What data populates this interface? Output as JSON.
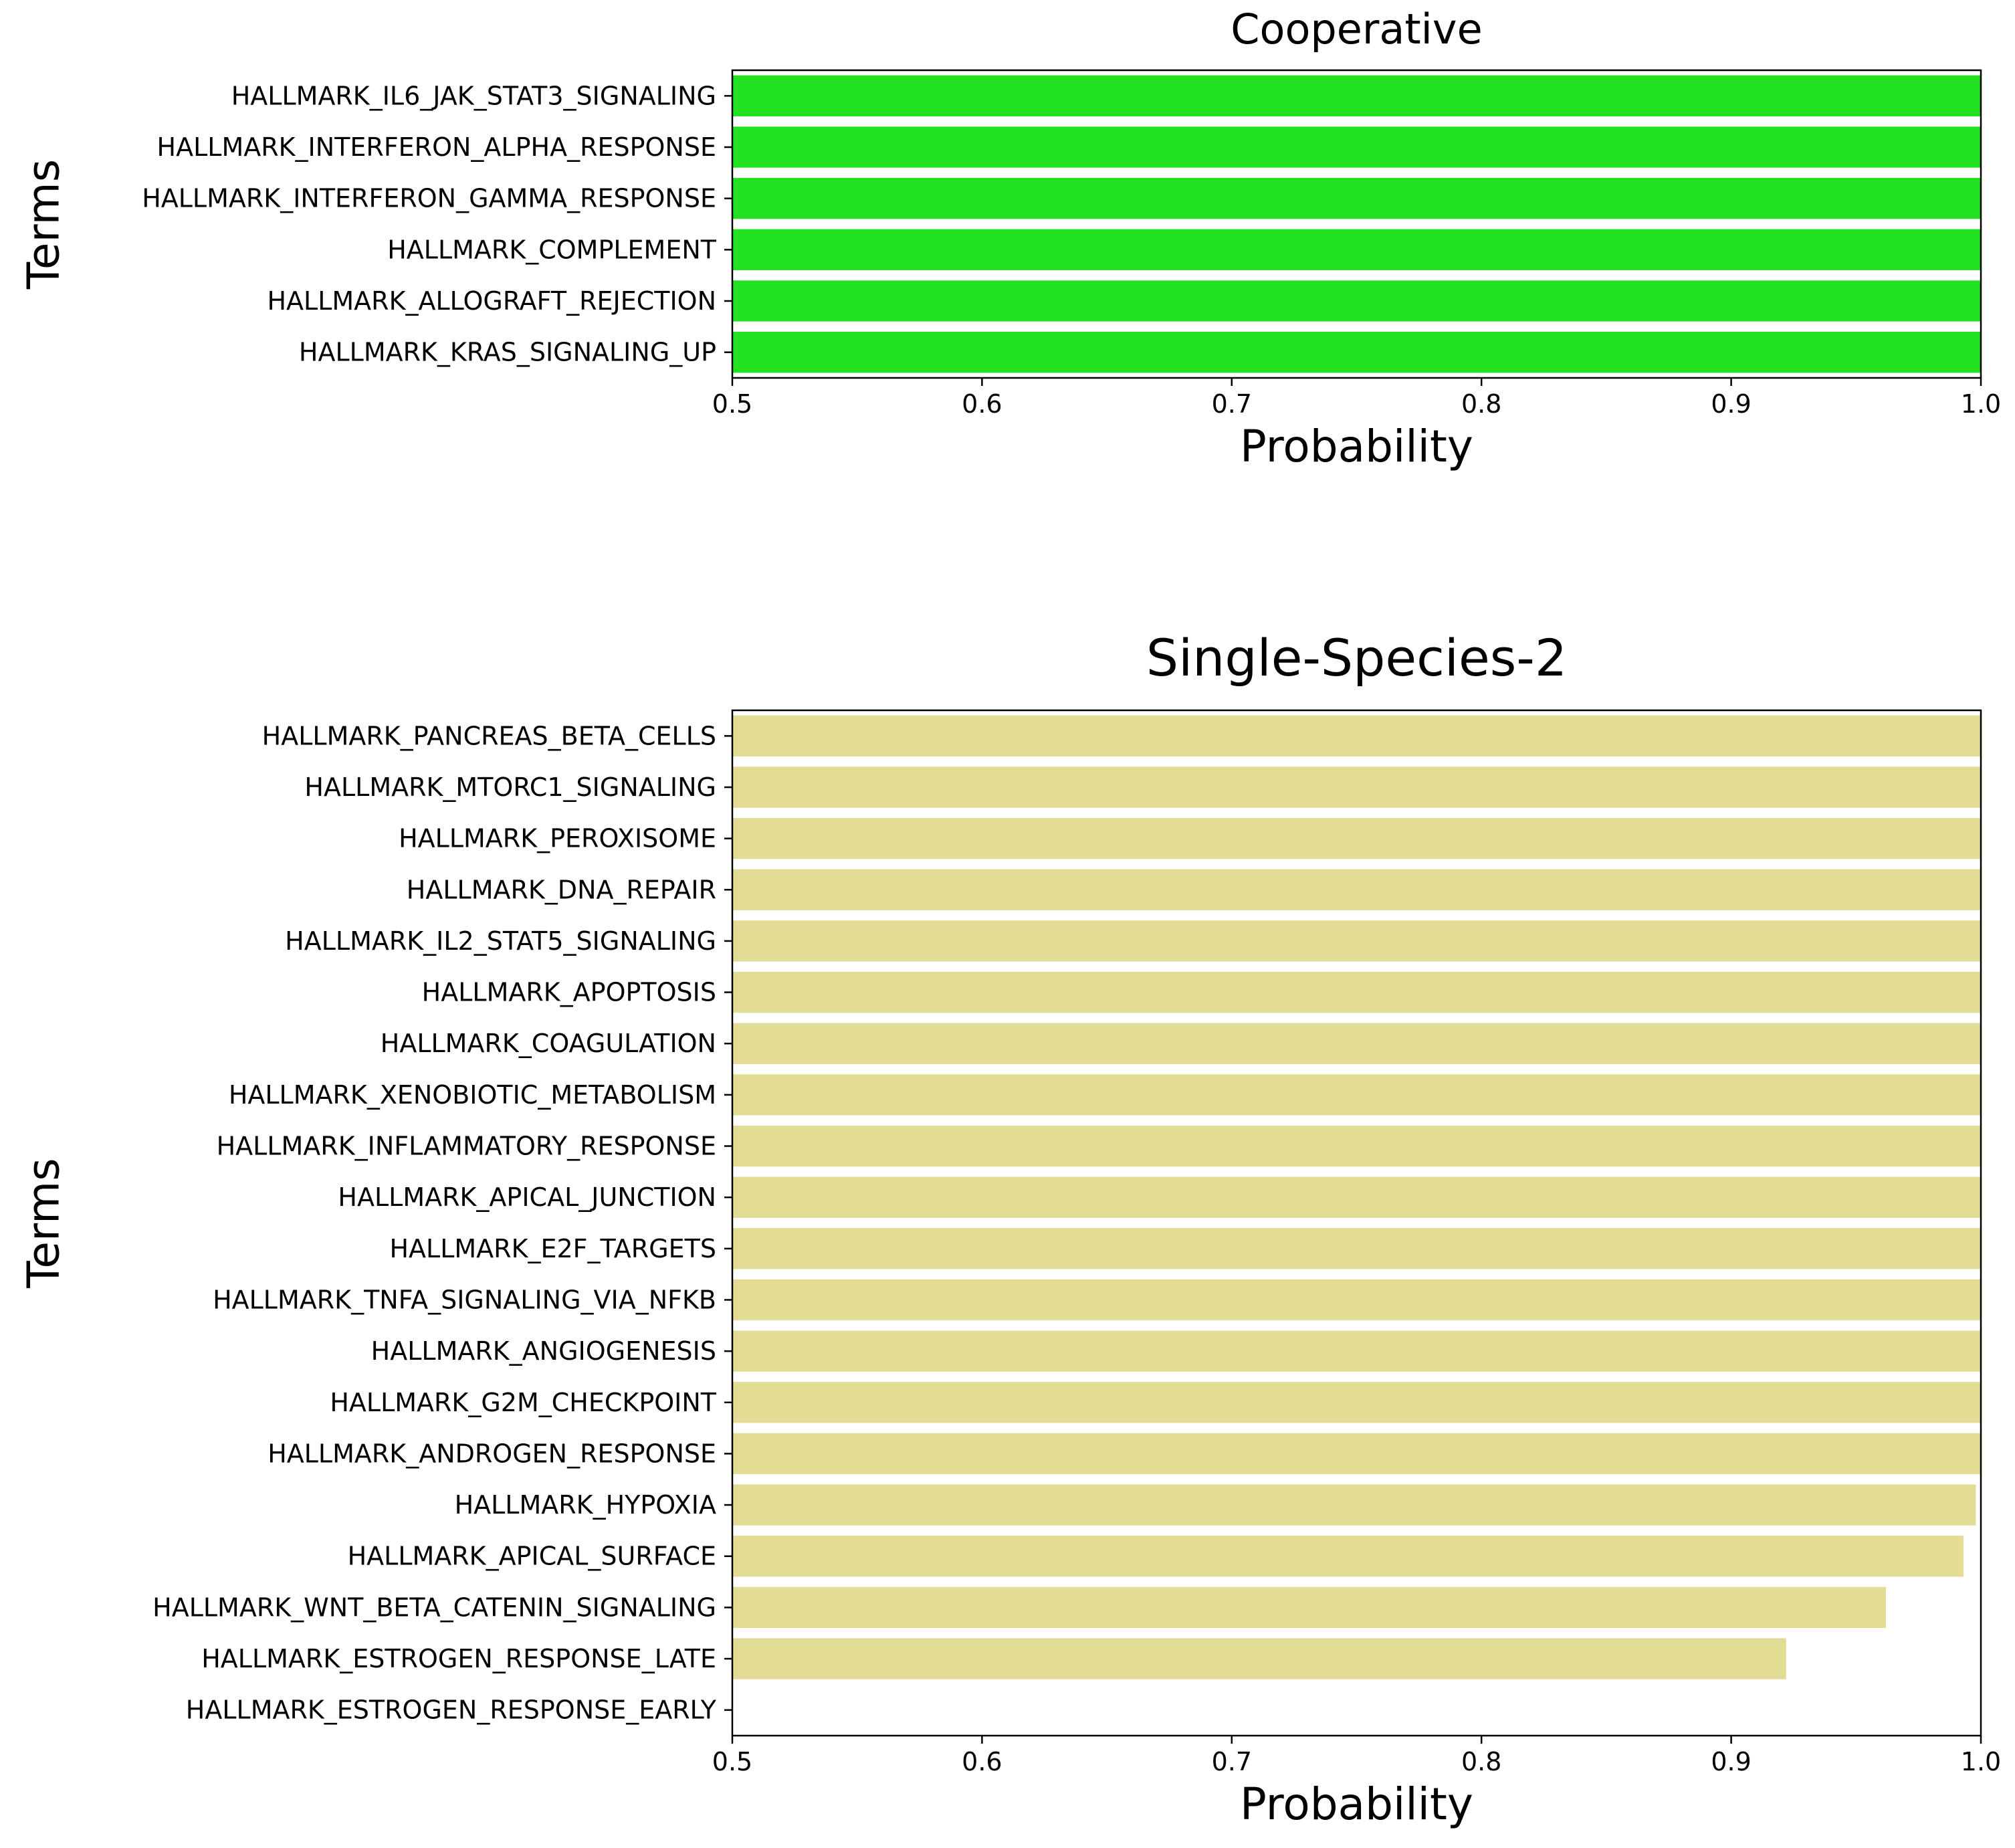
{
  "chart_data": [
    {
      "type": "bar",
      "orientation": "horizontal",
      "title": "Cooperative",
      "xlabel": "Probability",
      "ylabel": "Terms",
      "xlim": [
        0.5,
        1.0
      ],
      "xticks": [
        "0.5",
        "0.6",
        "0.7",
        "0.8",
        "0.9",
        "1.0"
      ],
      "grid": false,
      "bar_color": "#22e222",
      "categories": [
        "HALLMARK_IL6_JAK_STAT3_SIGNALING",
        "HALLMARK_INTERFERON_ALPHA_RESPONSE",
        "HALLMARK_INTERFERON_GAMMA_RESPONSE",
        "HALLMARK_COMPLEMENT",
        "HALLMARK_ALLOGRAFT_REJECTION",
        "HALLMARK_KRAS_SIGNALING_UP"
      ],
      "values": [
        1.0,
        1.0,
        1.0,
        1.0,
        1.0,
        1.0
      ]
    },
    {
      "type": "bar",
      "orientation": "horizontal",
      "title": "Single-Species-2",
      "xlabel": "Probability",
      "ylabel": "Terms",
      "xlim": [
        0.5,
        1.0
      ],
      "xticks": [
        "0.5",
        "0.6",
        "0.7",
        "0.8",
        "0.9",
        "1.0"
      ],
      "grid": false,
      "bar_color": "#e3dc94",
      "categories": [
        "HALLMARK_PANCREAS_BETA_CELLS",
        "HALLMARK_MTORC1_SIGNALING",
        "HALLMARK_PEROXISOME",
        "HALLMARK_DNA_REPAIR",
        "HALLMARK_IL2_STAT5_SIGNALING",
        "HALLMARK_APOPTOSIS",
        "HALLMARK_COAGULATION",
        "HALLMARK_XENOBIOTIC_METABOLISM",
        "HALLMARK_INFLAMMATORY_RESPONSE",
        "HALLMARK_APICAL_JUNCTION",
        "HALLMARK_E2F_TARGETS",
        "HALLMARK_TNFA_SIGNALING_VIA_NFKB",
        "HALLMARK_ANGIOGENESIS",
        "HALLMARK_G2M_CHECKPOINT",
        "HALLMARK_ANDROGEN_RESPONSE",
        "HALLMARK_HYPOXIA",
        "HALLMARK_APICAL_SURFACE",
        "HALLMARK_WNT_BETA_CATENIN_SIGNALING",
        "HALLMARK_ESTROGEN_RESPONSE_LATE",
        "HALLMARK_ESTROGEN_RESPONSE_EARLY"
      ],
      "values": [
        1.0,
        1.0,
        1.0,
        1.0,
        1.0,
        1.0,
        1.0,
        1.0,
        1.0,
        1.0,
        1.0,
        1.0,
        1.0,
        1.0,
        1.0,
        0.998,
        0.993,
        0.962,
        0.922,
        0.49
      ]
    }
  ]
}
